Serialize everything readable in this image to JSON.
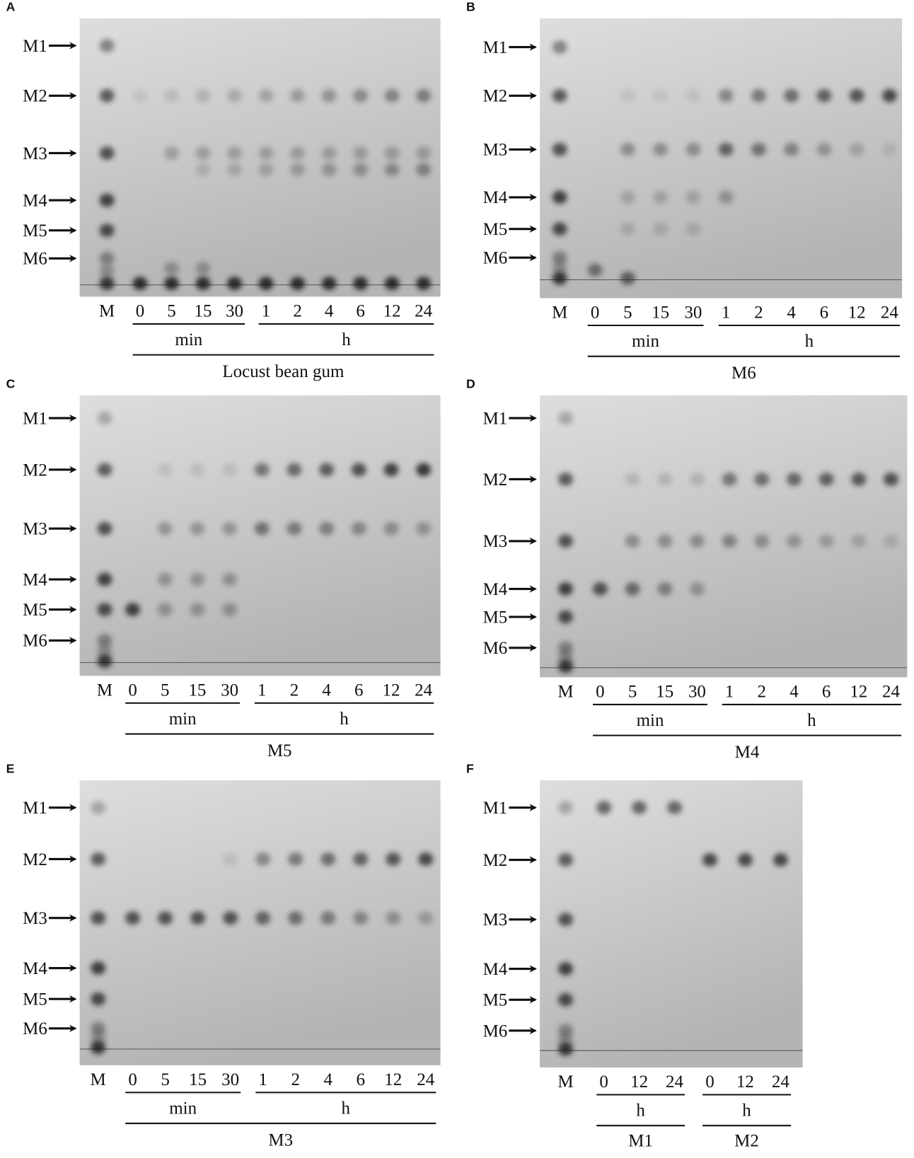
{
  "panels": [
    {
      "letter": "A",
      "markers": [
        "M1",
        "M2",
        "M3",
        "M4",
        "M5",
        "M6"
      ],
      "lanes": [
        "M",
        "0",
        "5",
        "15",
        "30",
        "1",
        "2",
        "4",
        "6",
        "12",
        "24"
      ],
      "groups": [
        {
          "label": "min"
        },
        {
          "label": "h"
        }
      ],
      "caption": "Locust bean gum"
    },
    {
      "letter": "B",
      "markers": [
        "M1",
        "M2",
        "M3",
        "M4",
        "M5",
        "M6"
      ],
      "lanes": [
        "M",
        "0",
        "5",
        "15",
        "30",
        "1",
        "2",
        "4",
        "6",
        "12",
        "24"
      ],
      "groups": [
        {
          "label": "min"
        },
        {
          "label": "h"
        }
      ],
      "caption": "M6"
    },
    {
      "letter": "C",
      "markers": [
        "M1",
        "M2",
        "M3",
        "M4",
        "M5",
        "M6"
      ],
      "lanes": [
        "M",
        "0",
        "5",
        "15",
        "30",
        "1",
        "2",
        "4",
        "6",
        "12",
        "24"
      ],
      "groups": [
        {
          "label": "min"
        },
        {
          "label": "h"
        }
      ],
      "caption": "M5"
    },
    {
      "letter": "D",
      "markers": [
        "M1",
        "M2",
        "M3",
        "M4",
        "M5",
        "M6"
      ],
      "lanes": [
        "M",
        "0",
        "5",
        "15",
        "30",
        "1",
        "2",
        "4",
        "6",
        "12",
        "24"
      ],
      "groups": [
        {
          "label": "min"
        },
        {
          "label": "h"
        }
      ],
      "caption": "M4"
    },
    {
      "letter": "E",
      "markers": [
        "M1",
        "M2",
        "M3",
        "M4",
        "M5",
        "M6"
      ],
      "lanes": [
        "M",
        "0",
        "5",
        "15",
        "30",
        "1",
        "2",
        "4",
        "6",
        "12",
        "24"
      ],
      "groups": [
        {
          "label": "min"
        },
        {
          "label": "h"
        }
      ],
      "caption": "M3"
    },
    {
      "letter": "F",
      "markers": [
        "M1",
        "M2",
        "M3",
        "M4",
        "M5",
        "M6"
      ],
      "lanes": [
        "M",
        "0",
        "12",
        "24",
        "0",
        "12",
        "24"
      ],
      "groups": [
        {
          "label": "h",
          "caption": "M1"
        },
        {
          "label": "h",
          "caption": "M2"
        }
      ]
    }
  ]
}
